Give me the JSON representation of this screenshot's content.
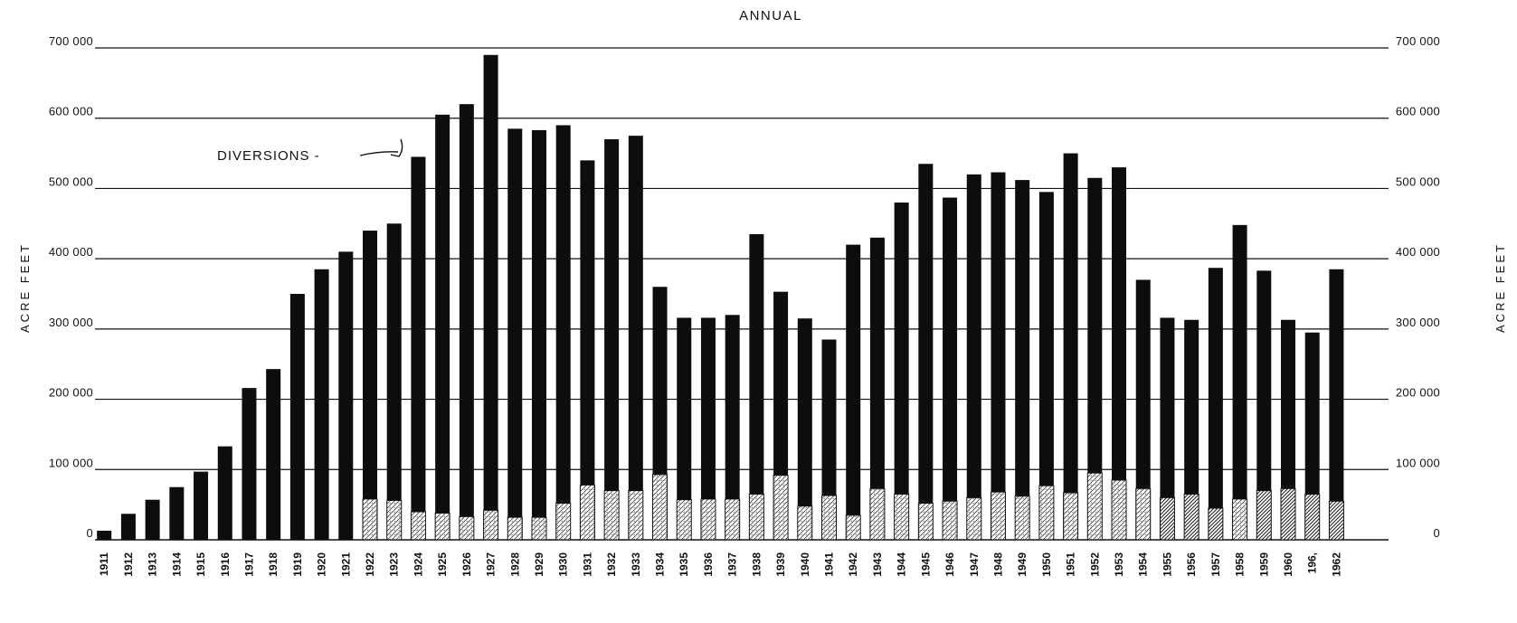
{
  "chart_data": {
    "type": "bar",
    "title": "ANNUAL",
    "ylabel_left": "ACRE FEET",
    "ylabel_right": "ACRE FEET",
    "ylim": [
      0,
      700000
    ],
    "yticks": [
      0,
      100000,
      200000,
      300000,
      400000,
      500000,
      600000,
      700000
    ],
    "ytick_labels_left": [
      "0",
      "100 000",
      "200 000",
      "300 000",
      "400 000",
      "500 000",
      "600 000",
      "700 000"
    ],
    "ytick_labels_right": [
      "0",
      "100 000",
      "200 000",
      "300 000",
      "400 000",
      "500 000",
      "600 000",
      "700 000"
    ],
    "grid": true,
    "stacked": true,
    "annotation": "DIVERSIONS -",
    "categories": [
      "1911",
      "1912",
      "1913",
      "1914",
      "1915",
      "1916",
      "1917",
      "1918",
      "1919",
      "1920",
      "1921",
      "1922",
      "1923",
      "1924",
      "1925",
      "1926",
      "1927",
      "1928",
      "1929",
      "1930",
      "1931",
      "1932",
      "1933",
      "1934",
      "1935",
      "1936",
      "1937",
      "1938",
      "1939",
      "1940",
      "1941",
      "1942",
      "1943",
      "1944",
      "1945",
      "1946",
      "1947",
      "1948",
      "1949",
      "1950",
      "1951",
      "1952",
      "1953",
      "1954",
      "1955",
      "1956",
      "1957",
      "1958",
      "1959",
      "1960",
      "196,",
      "1962"
    ],
    "series": [
      {
        "name": "",
        "fill": "#0d0d0d",
        "values": [
          13000,
          37000,
          57000,
          75000,
          97000,
          133000,
          216000,
          243000,
          350000,
          385000,
          410000,
          440000,
          450000,
          545000,
          605000,
          620000,
          690000,
          585000,
          583000,
          590000,
          540000,
          570000,
          575000,
          360000,
          316000,
          316000,
          320000,
          435000,
          353000,
          315000,
          285000,
          420000,
          430000,
          480000,
          535000,
          487000,
          520000,
          523000,
          512000,
          495000,
          550000,
          515000,
          530000,
          370000,
          316000,
          313000,
          387000,
          448000,
          383000,
          313000,
          295000,
          385000
        ]
      },
      {
        "name": "",
        "fill": "stippled",
        "values": [
          0,
          0,
          0,
          0,
          0,
          0,
          0,
          0,
          0,
          0,
          0,
          58000,
          56000,
          40000,
          38000,
          33000,
          42000,
          32000,
          32000,
          52000,
          78000,
          70000,
          70000,
          93000,
          57000,
          58000,
          58000,
          65000,
          92000,
          48000,
          63000,
          35000,
          73000,
          65000,
          52000,
          55000,
          60000,
          68000,
          62000,
          77000,
          67000,
          95000,
          85000,
          73000,
          0,
          0,
          0,
          58000,
          0,
          0,
          0,
          0
        ]
      },
      {
        "name": "",
        "fill": "hatched",
        "values": [
          0,
          0,
          0,
          0,
          0,
          0,
          0,
          0,
          0,
          0,
          0,
          0,
          0,
          0,
          0,
          0,
          0,
          0,
          0,
          0,
          0,
          0,
          0,
          0,
          0,
          0,
          0,
          0,
          0,
          0,
          0,
          0,
          0,
          0,
          0,
          0,
          0,
          0,
          0,
          0,
          0,
          0,
          0,
          0,
          60000,
          65000,
          45000,
          0,
          70000,
          73000,
          65000,
          55000
        ]
      }
    ]
  }
}
